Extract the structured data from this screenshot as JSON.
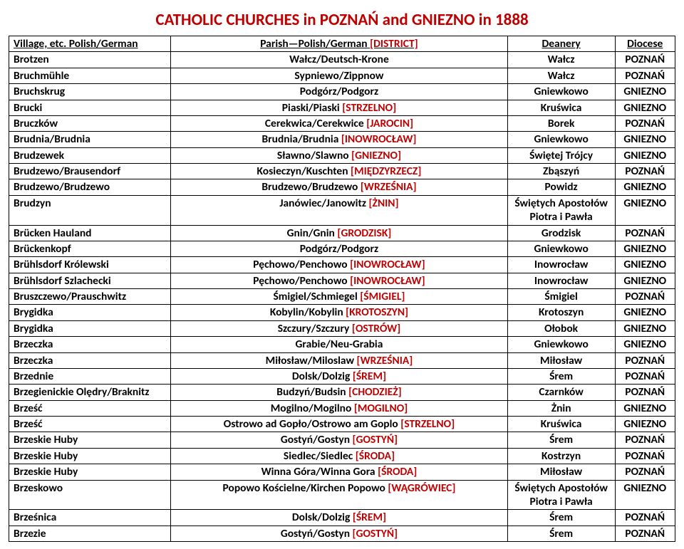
{
  "title": "CATHOLIC CHURCHES in POZNAŃ and GNIEZNO in 1888",
  "headers": {
    "village": "Village, etc.",
    "polishGerman": "Polish/German",
    "parish": "Parish—Polish/German",
    "district": "[DISTRICT]",
    "deanery": "Deanery",
    "diocese": "Diocese"
  },
  "rows": [
    {
      "village": "Brotzen",
      "parish": "Wałcz/Deutsch-Krone",
      "district": "",
      "deanery": "Wałcz",
      "diocese": "POZNAŃ"
    },
    {
      "village": "Bruchmühle",
      "parish": "Sypniewo/Zippnow",
      "district": "",
      "deanery": "Wałcz",
      "diocese": "POZNAŃ"
    },
    {
      "village": "Bruchskrug",
      "parish": "Podgórz/Podgorz",
      "district": "",
      "deanery": "Gniewkowo",
      "diocese": "GNIEZNO"
    },
    {
      "village": "Brucki",
      "parish": "Piaski/Piaski",
      "district": "[STRZELNO]",
      "deanery": "Kruświca",
      "diocese": "GNIEZNO"
    },
    {
      "village": "Bruczków",
      "parish": "Cerekwica/Cerekwice",
      "district": "[JAROCIN]",
      "deanery": "Borek",
      "diocese": "POZNAŃ"
    },
    {
      "village": "Brudnia/Brudnia",
      "parish": "Brudnia/Brudnia",
      "district": "[INOWROCŁAW]",
      "deanery": "Gniewkowo",
      "diocese": "GNIEZNO"
    },
    {
      "village": "Brudzewek",
      "parish": "Sławno/Slawno",
      "district": "[GNIEZNO]",
      "deanery": "Świętej Trójcy",
      "diocese": "GNIEZNO"
    },
    {
      "village": "Brudzewo/Brausendorf",
      "parish": "Kosieczyn/Kuschten",
      "district": "[MIĘDZYRZECZ]",
      "deanery": "Zbąszyń",
      "diocese": "POZNAŃ"
    },
    {
      "village": "Brudzewo/Brudzewo",
      "parish": "Brudzewo/Brudzewo",
      "district": "[WRZEŚNIA]",
      "deanery": "Powidz",
      "diocese": "GNIEZNO"
    },
    {
      "village": "Brudzyn",
      "parish": "Janówiec/Janowitz",
      "district": "[ŻNIN]",
      "deanery": "Świętych Apostołów Piotra i Pawła",
      "diocese": "GNIEZNO"
    },
    {
      "village": "Brücken Hauland",
      "parish": "Gnin/Gnin",
      "district": "[GRODZISK]",
      "deanery": "Grodzisk",
      "diocese": "POZNAŃ"
    },
    {
      "village": "Brückenkopf",
      "parish": "Podgórz/Podgorz",
      "district": "",
      "deanery": "Gniewkowo",
      "diocese": "GNIEZNO"
    },
    {
      "village": "Brühlsdorf Królewski",
      "parish": "Pęchowo/Penchowo",
      "district": "[INOWROCŁAW]",
      "deanery": "Inowrocław",
      "diocese": "GNIEZNO"
    },
    {
      "village": "Brühlsdorf Szlachecki",
      "parish": "Pęchowo/Penchowo",
      "district": "[INOWROCŁAW]",
      "deanery": "Inowrocław",
      "diocese": "GNIEZNO"
    },
    {
      "village": "Bruszczewo/Prauschwitz",
      "parish": "Śmigiel/Schmiegel",
      "district": "[ŚMIGIEL]",
      "deanery": "Śmigiel",
      "diocese": "POZNAŃ"
    },
    {
      "village": "Brygidka",
      "parish": "Kobylin/Kobylin",
      "district": "[KROTOSZYN]",
      "deanery": "Krotoszyn",
      "diocese": "GNIEZNO"
    },
    {
      "village": "Brygidka",
      "parish": "Szczury/Szczury",
      "district": "[OSTRÓW]",
      "deanery": "Ołobok",
      "diocese": "GNIEZNO"
    },
    {
      "village": "Brzeczka",
      "parish": "Grabie/Neu-Grabia",
      "district": "",
      "deanery": "Gniewkowo",
      "diocese": "GNIEZNO"
    },
    {
      "village": "Brzeczka",
      "parish": "Miłosław/Miloslaw",
      "district": "[WRZEŚNIA]",
      "deanery": "Miłosław",
      "diocese": "POZNAŃ"
    },
    {
      "village": "Brzednie",
      "parish": "Dolsk/Dolzig",
      "district": "[ŚREM]",
      "deanery": "Śrem",
      "diocese": "POZNAŃ"
    },
    {
      "village": "Brzegienickie Olędry/Braknitz",
      "parish": "Budzyń/Budsin",
      "district": "[CHODZIEŻ]",
      "deanery": "Czarnków",
      "diocese": "POZNAŃ"
    },
    {
      "village": "Brześć",
      "parish": "Mogilno/Mogilno",
      "district": "[MOGILNO]",
      "deanery": "Żnin",
      "diocese": "GNIEZNO"
    },
    {
      "village": "Brześć",
      "parish": "Ostrowo ad Gopło/Ostrowo am Goplo",
      "district": "[STRZELNO]",
      "deanery": "Kruświca",
      "diocese": "GNIEZNO"
    },
    {
      "village": "Brzeskie Huby",
      "parish": "Gostyń/Gostyn",
      "district": "[GOSTYŃ]",
      "deanery": "Śrem",
      "diocese": "POZNAŃ"
    },
    {
      "village": "Brzeskie Huby",
      "parish": "Siedlec/Siedlec",
      "district": "[ŚRODA]",
      "deanery": "Kostrzyn",
      "diocese": "POZNAŃ"
    },
    {
      "village": "Brzeskie Huby",
      "parish": "Winna Góra/Winna Gora",
      "district": "[ŚRODA]",
      "deanery": "Miłosław",
      "diocese": "POZNAŃ"
    },
    {
      "village": "Brzeskowo",
      "parish": "Popowo Kościelne/Kirchen Popowo",
      "district": "[WĄGRÓWIEC]",
      "deanery": "Świętych Apostołów Piotra i Pawła",
      "diocese": "GNIEZNO"
    },
    {
      "village": "Brześnica",
      "parish": "Dolsk/Dolzig",
      "district": "[ŚREM]",
      "deanery": "Śrem",
      "diocese": "POZNAŃ"
    },
    {
      "village": "Brzezie",
      "parish": "Gostyń/Gostyn",
      "district": "[GOSTYŃ]",
      "deanery": "Śrem",
      "diocese": "POZNAŃ"
    }
  ]
}
